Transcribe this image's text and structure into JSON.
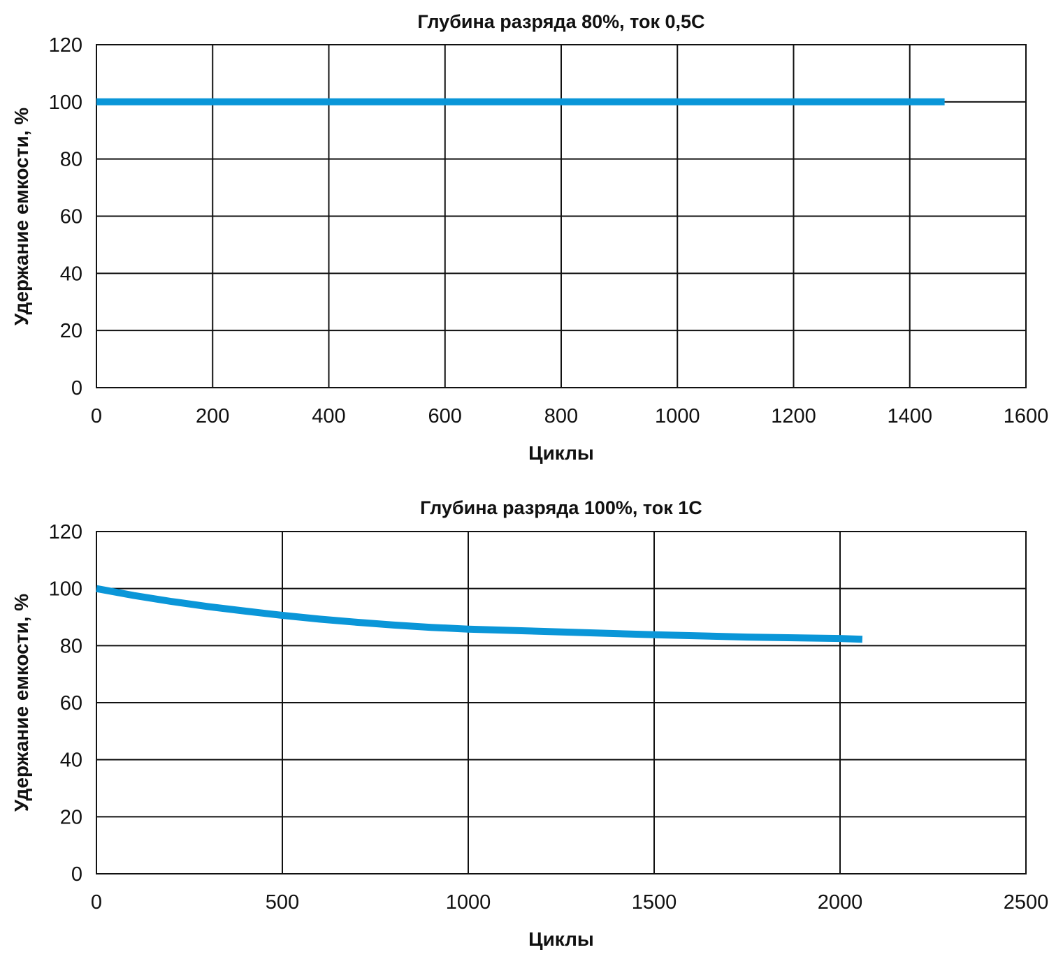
{
  "chart_data": [
    {
      "type": "line",
      "title": "Глубина разряда 80%, ток 0,5С",
      "xlabel": "Циклы",
      "ylabel": "Удержание емкости, %",
      "xlim": [
        0,
        1600
      ],
      "ylim": [
        0,
        120
      ],
      "xticks": [
        "0",
        "200",
        "400",
        "600",
        "800",
        "1000",
        "1200",
        "1400",
        "1600"
      ],
      "yticks": [
        "0",
        "20",
        "40",
        "60",
        "80",
        "100",
        "120"
      ],
      "grid": true,
      "series": [
        {
          "color": "#0a96d8",
          "x": [
            0,
            1460
          ],
          "y": [
            100,
            100
          ]
        }
      ]
    },
    {
      "type": "line",
      "title": "Глубина разряда 100%, ток 1С",
      "xlabel": "Циклы",
      "ylabel": "Удержание емкости, %",
      "xlim": [
        0,
        2500
      ],
      "ylim": [
        0,
        120
      ],
      "xticks": [
        "0",
        "500",
        "1000",
        "1500",
        "2000",
        "2500"
      ],
      "yticks": [
        "0",
        "20",
        "40",
        "60",
        "80",
        "100",
        "120"
      ],
      "grid": true,
      "series": [
        {
          "color": "#0a96d8",
          "x": [
            0,
            100,
            200,
            300,
            400,
            500,
            600,
            700,
            800,
            900,
            1000,
            1250,
            1500,
            1750,
            2000,
            2060
          ],
          "y": [
            100,
            97.6,
            95.5,
            93.7,
            92.1,
            90.6,
            89.3,
            88.2,
            87.2,
            86.4,
            85.8,
            84.8,
            83.8,
            83.0,
            82.5,
            82.2
          ]
        }
      ]
    }
  ]
}
